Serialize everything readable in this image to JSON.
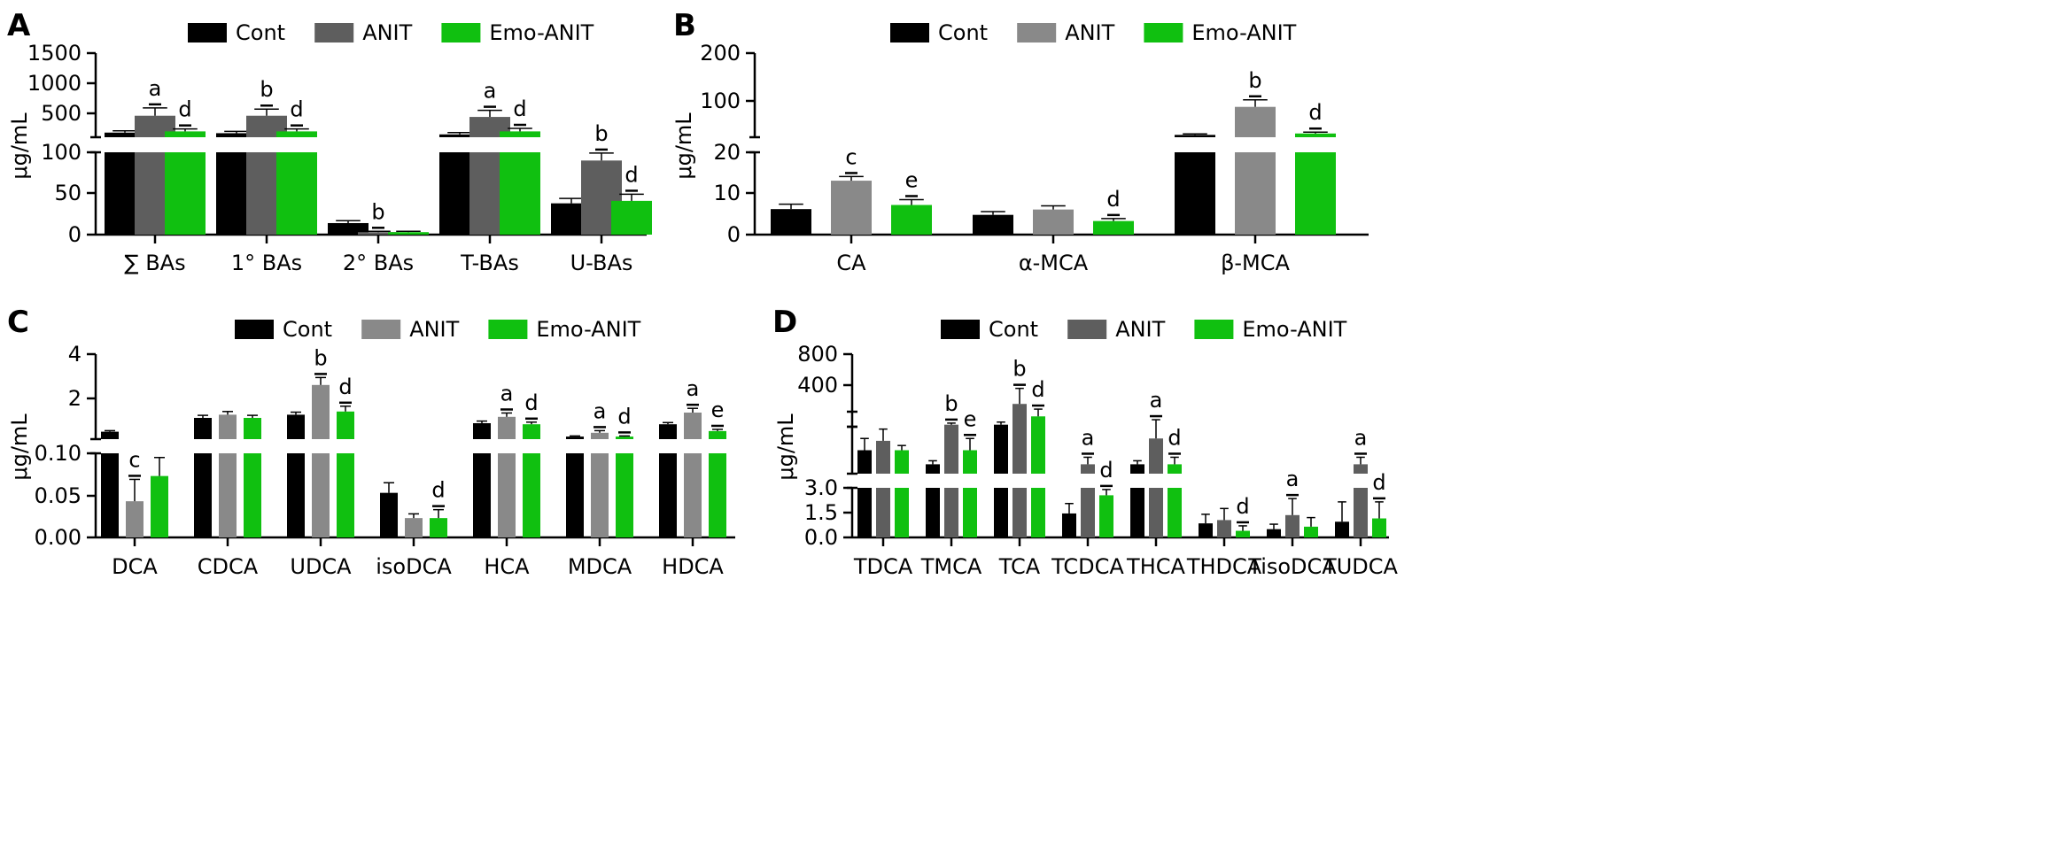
{
  "legend": {
    "labels": [
      "Cont",
      "ANIT",
      "Emo-ANIT"
    ]
  },
  "colors": {
    "Cont": "#000000",
    "ANIT_dark": "#5e5e5e",
    "ANIT_light": "#898989",
    "Emo-ANIT": "#10c010"
  },
  "chart_data": [
    {
      "panel": "A",
      "type": "bar",
      "ylabel": "μg/mL",
      "broken_axis": true,
      "lower_ylim": [
        0,
        100
      ],
      "upper_ylim": [
        0,
        1500
      ],
      "lower_ticks": [
        "0",
        "50",
        "100"
      ],
      "upper_ticks": [
        "500",
        "1000",
        "1500"
      ],
      "categories": [
        "∑ BAs",
        "1° BAs",
        "2° BAs",
        "T-BAs",
        "U-BAs"
      ],
      "series": [
        {
          "name": "Cont",
          "values": [
            180,
            170,
            14,
            150,
            38
          ],
          "errors": [
            30,
            30,
            3,
            30,
            6
          ]
        },
        {
          "name": "ANIT",
          "values": [
            460,
            460,
            3,
            440,
            90
          ],
          "errors": [
            130,
            110,
            1,
            110,
            9
          ]
        },
        {
          "name": "Emo-ANIT",
          "values": [
            200,
            200,
            3,
            200,
            41
          ],
          "errors": [
            40,
            40,
            1,
            50,
            8
          ]
        }
      ],
      "sig": [
        [
          "",
          "a",
          "d"
        ],
        [
          "",
          "b",
          "d"
        ],
        [
          "",
          "b",
          ""
        ],
        [
          "",
          "a",
          "d"
        ],
        [
          "",
          "b",
          "d"
        ]
      ]
    },
    {
      "panel": "B",
      "type": "bar",
      "ylabel": "μg/mL",
      "broken_axis": true,
      "lower_ylim": [
        0,
        20
      ],
      "upper_ylim": [
        20,
        200
      ],
      "lower_ticks": [
        "0",
        "10",
        "20"
      ],
      "upper_ticks": [
        "100",
        "200"
      ],
      "categories": [
        "CA",
        "α-MCA",
        "β-MCA"
      ],
      "series": [
        {
          "name": "Cont",
          "values": [
            6.2,
            4.8,
            25
          ],
          "errors": [
            1.2,
            0.8,
            2
          ]
        },
        {
          "name": "ANIT",
          "values": [
            13.1,
            6.1,
            85
          ],
          "errors": [
            1.0,
            0.9,
            15
          ]
        },
        {
          "name": "Emo-ANIT",
          "values": [
            7.2,
            3.3,
            28
          ],
          "errors": [
            1.3,
            0.6,
            3
          ]
        }
      ],
      "sig": [
        [
          "",
          "c",
          "e"
        ],
        [
          "",
          "",
          "d"
        ],
        [
          "",
          "b",
          "d"
        ]
      ]
    },
    {
      "panel": "C",
      "type": "bar",
      "ylabel": "μg/mL",
      "broken_axis": true,
      "lower_ylim": [
        0,
        0.1
      ],
      "upper_ylim": [
        0,
        4
      ],
      "lower_ticks": [
        "0.00",
        "0.05",
        "0.10"
      ],
      "upper_ticks": [
        "2",
        "4"
      ],
      "categories": [
        "DCA",
        "CDCA",
        "UDCA",
        "isoDCA",
        "HCA",
        "MDCA",
        "HDCA"
      ],
      "series": [
        {
          "name": "Cont",
          "values": [
            0.35,
            1.0,
            1.15,
            0.053,
            0.75,
            0.12,
            0.7
          ],
          "errors": [
            0.05,
            0.12,
            0.12,
            0.012,
            0.1,
            0.03,
            0.08
          ]
        },
        {
          "name": "ANIT",
          "values": [
            0.043,
            1.15,
            2.55,
            0.023,
            1.05,
            0.3,
            1.25
          ],
          "errors": [
            0.026,
            0.15,
            0.35,
            0.005,
            0.18,
            0.1,
            0.2
          ]
        },
        {
          "name": "Emo-ANIT",
          "values": [
            0.073,
            1.0,
            1.3,
            0.023,
            0.7,
            0.12,
            0.38
          ],
          "errors": [
            0.022,
            0.12,
            0.25,
            0.01,
            0.1,
            0.03,
            0.08
          ]
        }
      ],
      "sig": [
        [
          "",
          "c",
          ""
        ],
        [
          "",
          "",
          ""
        ],
        [
          "",
          "b",
          "d"
        ],
        [
          "",
          "",
          "d"
        ],
        [
          "",
          "a",
          "d"
        ],
        [
          "",
          "a",
          "d"
        ],
        [
          "",
          "a",
          "e"
        ]
      ]
    },
    {
      "panel": "D",
      "type": "bar",
      "ylabel": "μg/mL",
      "broken_axis": true,
      "lower_ylim": [
        0,
        3.0
      ],
      "upper_ylim": [
        0,
        800
      ],
      "lower_ticks": [
        "0.0",
        "1.5",
        "3.0"
      ],
      "upper_ticks": [
        "400",
        "800"
      ],
      "categories": [
        "TDCA",
        "TMCA",
        "TCA",
        "TCDCA",
        "THCA",
        "THDCA",
        "TisoDCA",
        "TUDCA"
      ],
      "series": [
        {
          "name": "Cont",
          "values": [
            13,
            7,
            120,
            1.45,
            7,
            0.85,
            0.5,
            0.95
          ],
          "errors": [
            5,
            1.5,
            25,
            0.6,
            1.5,
            0.55,
            0.3,
            1.2
          ]
        },
        {
          "name": "ANIT",
          "values": [
            17,
            120,
            320,
            7,
            18,
            1.05,
            1.35,
            7
          ],
          "errors": [
            5,
            15,
            150,
            3,
            8,
            0.7,
            1.0,
            3
          ]
        },
        {
          "name": "Emo-ANIT",
          "values": [
            13,
            13,
            200,
            2.55,
            7,
            0.4,
            0.65,
            1.15
          ],
          "errors": [
            2,
            5,
            70,
            0.35,
            3,
            0.3,
            0.55,
            1.0
          ]
        }
      ],
      "sig": [
        [
          "",
          "",
          ""
        ],
        [
          "",
          "b",
          "e"
        ],
        [
          "",
          "b",
          "d"
        ],
        [
          "",
          "a",
          "d"
        ],
        [
          "",
          "a",
          "d"
        ],
        [
          "",
          "",
          "d"
        ],
        [
          "",
          "a",
          ""
        ],
        [
          "",
          "a",
          "d"
        ]
      ]
    }
  ]
}
